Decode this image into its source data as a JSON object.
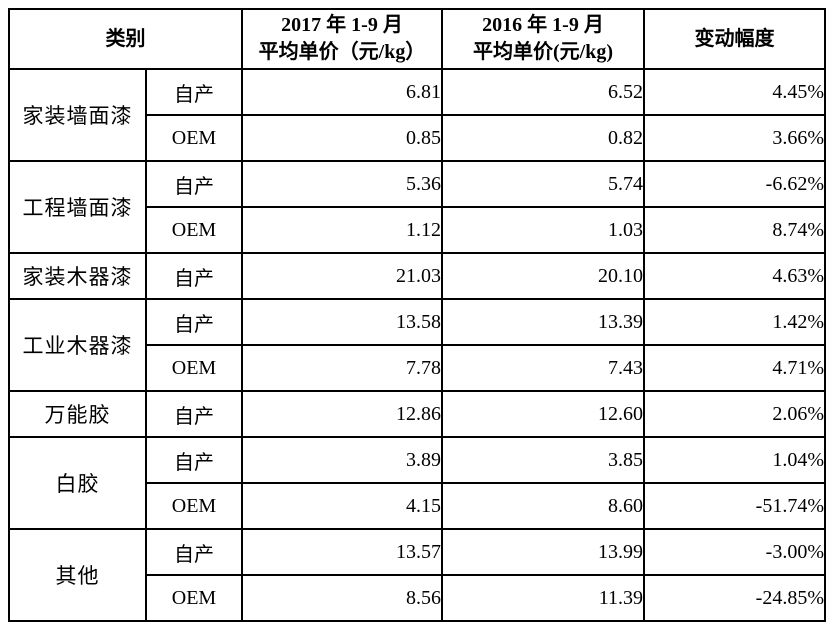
{
  "table": {
    "header": {
      "category": "类别",
      "y2017_line1": "2017 年 1-9 月",
      "y2017_line2": "平均单价（元/kg）",
      "y2016_line1": "2016 年 1-9 月",
      "y2016_line2": "平均单价(元/kg)",
      "change": "变动幅度"
    },
    "groups": [
      {
        "category": "家装墙面漆",
        "rows": [
          {
            "source": "自产",
            "p2017": "6.81",
            "p2016": "6.52",
            "change": "4.45%"
          },
          {
            "source": "OEM",
            "p2017": "0.85",
            "p2016": "0.82",
            "change": "3.66%"
          }
        ]
      },
      {
        "category": "工程墙面漆",
        "rows": [
          {
            "source": "自产",
            "p2017": "5.36",
            "p2016": "5.74",
            "change": "-6.62%"
          },
          {
            "source": "OEM",
            "p2017": "1.12",
            "p2016": "1.03",
            "change": "8.74%"
          }
        ]
      },
      {
        "category": "家装木器漆",
        "rows": [
          {
            "source": "自产",
            "p2017": "21.03",
            "p2016": "20.10",
            "change": "4.63%"
          }
        ]
      },
      {
        "category": "工业木器漆",
        "rows": [
          {
            "source": "自产",
            "p2017": "13.58",
            "p2016": "13.39",
            "change": "1.42%"
          },
          {
            "source": "OEM",
            "p2017": "7.78",
            "p2016": "7.43",
            "change": "4.71%"
          }
        ]
      },
      {
        "category": "万能胶",
        "rows": [
          {
            "source": "自产",
            "p2017": "12.86",
            "p2016": "12.60",
            "change": "2.06%"
          }
        ]
      },
      {
        "category": "白胶",
        "rows": [
          {
            "source": "自产",
            "p2017": "3.89",
            "p2016": "3.85",
            "change": "1.04%"
          },
          {
            "source": "OEM",
            "p2017": "4.15",
            "p2016": "8.60",
            "change": "-51.74%"
          }
        ]
      },
      {
        "category": "其他",
        "rows": [
          {
            "source": "自产",
            "p2017": "13.57",
            "p2016": "13.99",
            "change": "-3.00%"
          },
          {
            "source": "OEM",
            "p2017": "8.56",
            "p2016": "11.39",
            "change": "-24.85%"
          }
        ]
      }
    ]
  }
}
